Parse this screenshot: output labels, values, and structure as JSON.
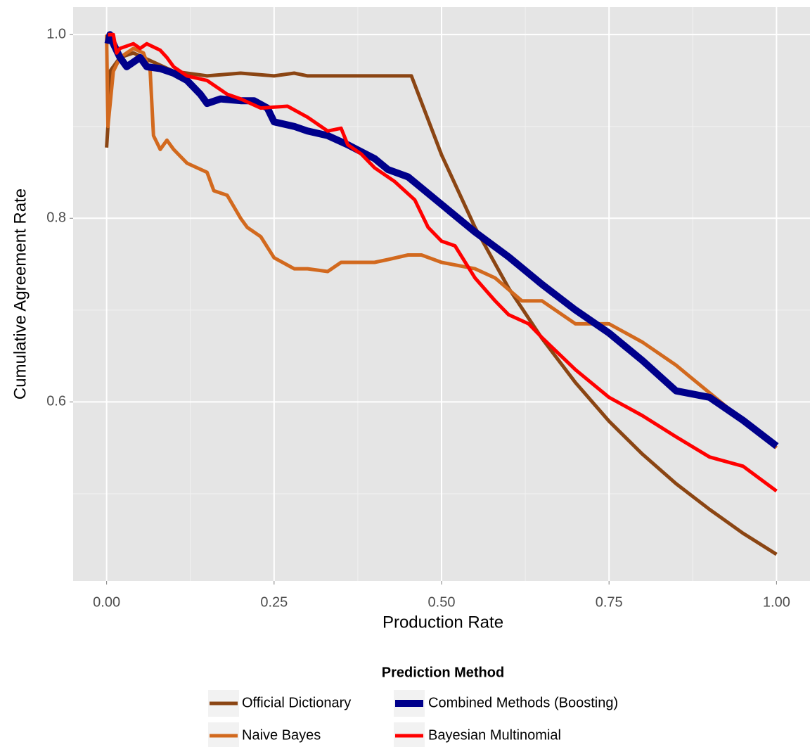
{
  "chart_data": {
    "type": "line",
    "x_label": "Production Rate",
    "y_label": "Cumulative Agreement Rate",
    "legend_title": "Prediction Method",
    "legend_position": "bottom",
    "grid": true,
    "xlim": [
      -0.05,
      1.05
    ],
    "ylim": [
      0.405,
      1.03
    ],
    "xticks": [
      {
        "value": 0,
        "label": "0.00"
      },
      0.25,
      {
        "value": 0.5,
        "label": "0.50"
      },
      0.75,
      {
        "value": 1,
        "label": "1.00"
      }
    ],
    "yticks": [
      {
        "value": 0.6,
        "label": "0.6"
      },
      0.8,
      {
        "value": 1,
        "label": "1.0"
      }
    ],
    "xminor": [
      0.125,
      0.375,
      0.625,
      0.875
    ],
    "yminor": [
      0.5,
      0.7,
      0.9
    ],
    "series": [
      {
        "name": "Official Dictionary",
        "color": "#8B4513",
        "x": [
          0,
          0.002,
          0.005,
          0.02,
          0.04,
          0.1,
          0.15,
          0.2,
          0.25,
          0.28,
          0.3,
          0.35,
          0.4,
          0.455,
          0.5,
          0.55,
          0.6,
          0.65,
          0.7,
          0.75,
          0.8,
          0.85,
          0.9,
          0.95,
          1.0
        ],
        "values": [
          0.877,
          0.9,
          0.96,
          0.975,
          0.98,
          0.96,
          0.955,
          0.958,
          0.955,
          0.958,
          0.955,
          0.955,
          0.955,
          0.955,
          0.869,
          0.79,
          0.724,
          0.669,
          0.621,
          0.579,
          0.543,
          0.511,
          0.483,
          0.457,
          0.434
        ]
      },
      {
        "name": "Naive Bayes",
        "color": "#D2691E",
        "x": [
          0,
          0.002,
          0.01,
          0.02,
          0.04,
          0.055,
          0.065,
          0.07,
          0.08,
          0.09,
          0.1,
          0.12,
          0.15,
          0.16,
          0.18,
          0.2,
          0.21,
          0.23,
          0.25,
          0.28,
          0.3,
          0.33,
          0.35,
          0.4,
          0.42,
          0.45,
          0.47,
          0.5,
          0.55,
          0.58,
          0.62,
          0.65,
          0.7,
          0.75,
          0.8,
          0.85,
          0.87,
          0.9,
          0.95,
          1.0
        ],
        "values": [
          1.0,
          0.9,
          0.96,
          0.975,
          0.985,
          0.98,
          0.96,
          0.89,
          0.875,
          0.885,
          0.875,
          0.86,
          0.85,
          0.83,
          0.825,
          0.8,
          0.79,
          0.78,
          0.757,
          0.745,
          0.745,
          0.742,
          0.752,
          0.752,
          0.755,
          0.76,
          0.76,
          0.752,
          0.745,
          0.735,
          0.71,
          0.71,
          0.685,
          0.685,
          0.665,
          0.64,
          0.628,
          0.61,
          0.58,
          0.55
        ]
      },
      {
        "name": "Combined Methods (Boosting)",
        "color": "#00008B",
        "x": [
          0.002,
          0.005,
          0.01,
          0.02,
          0.03,
          0.05,
          0.06,
          0.08,
          0.1,
          0.12,
          0.14,
          0.15,
          0.17,
          0.2,
          0.22,
          0.24,
          0.25,
          0.28,
          0.3,
          0.33,
          0.36,
          0.4,
          0.42,
          0.45,
          0.5,
          0.55,
          0.6,
          0.65,
          0.7,
          0.75,
          0.8,
          0.85,
          0.9,
          0.95,
          1.0
        ],
        "values": [
          0.99,
          1.0,
          0.99,
          0.975,
          0.965,
          0.975,
          0.965,
          0.963,
          0.958,
          0.95,
          0.935,
          0.925,
          0.93,
          0.928,
          0.928,
          0.92,
          0.905,
          0.9,
          0.895,
          0.89,
          0.88,
          0.865,
          0.853,
          0.845,
          0.815,
          0.785,
          0.758,
          0.728,
          0.7,
          0.675,
          0.645,
          0.612,
          0.605,
          0.58,
          0.552
        ]
      },
      {
        "name": "Bayesian Multinomial",
        "color": "#FF0000",
        "x": [
          0.002,
          0.01,
          0.015,
          0.02,
          0.04,
          0.05,
          0.06,
          0.08,
          0.09,
          0.1,
          0.12,
          0.15,
          0.18,
          0.2,
          0.23,
          0.27,
          0.3,
          0.33,
          0.35,
          0.36,
          0.38,
          0.4,
          0.43,
          0.46,
          0.48,
          0.5,
          0.52,
          0.55,
          0.58,
          0.6,
          0.63,
          0.65,
          0.7,
          0.75,
          0.8,
          0.85,
          0.9,
          0.95,
          1.0
        ],
        "values": [
          1.0,
          1.0,
          0.98,
          0.985,
          0.99,
          0.985,
          0.99,
          0.983,
          0.975,
          0.965,
          0.955,
          0.95,
          0.935,
          0.93,
          0.92,
          0.922,
          0.91,
          0.895,
          0.898,
          0.88,
          0.87,
          0.855,
          0.84,
          0.82,
          0.79,
          0.775,
          0.77,
          0.735,
          0.71,
          0.695,
          0.685,
          0.67,
          0.635,
          0.605,
          0.585,
          0.562,
          0.54,
          0.53,
          0.503
        ]
      }
    ]
  }
}
